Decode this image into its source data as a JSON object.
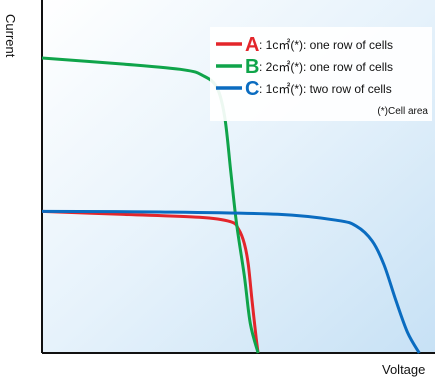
{
  "chart_data": {
    "type": "line",
    "xlabel": "Voltage",
    "ylabel": "Current",
    "xlim": [
      0,
      100
    ],
    "ylim": [
      0,
      100
    ],
    "grid": false,
    "legend_placement": "top-right",
    "series": [
      {
        "letter": "A",
        "description": ": 1c㎡(*): one row of cells",
        "color": "#e3262b",
        "x": [
          0,
          20,
          40,
          48,
          50,
          51.5,
          52.5,
          53.5,
          54.5,
          55
        ],
        "y": [
          48,
          47,
          46,
          44.5,
          42,
          37,
          30,
          17,
          5,
          0
        ]
      },
      {
        "letter": "B",
        "description": ": 2c㎡(*): one row of cells",
        "color": "#0fa44a",
        "x": [
          0,
          20,
          36,
          41,
          44.5,
          46.5,
          48,
          49.5,
          51.5,
          53,
          55
        ],
        "y": [
          100,
          98,
          96,
          94,
          90,
          80,
          62,
          44,
          26,
          10,
          0
        ]
      },
      {
        "letter": "C",
        "description": ": 1c㎡(*): two row of cells",
        "color": "#0a6cc0",
        "x": [
          0,
          30,
          60,
          75,
          80,
          84,
          87,
          90,
          93,
          96
        ],
        "y": [
          48,
          47.8,
          47,
          45,
          43,
          38,
          30,
          18,
          7,
          0
        ]
      }
    ],
    "note": "(*)Cell area"
  }
}
